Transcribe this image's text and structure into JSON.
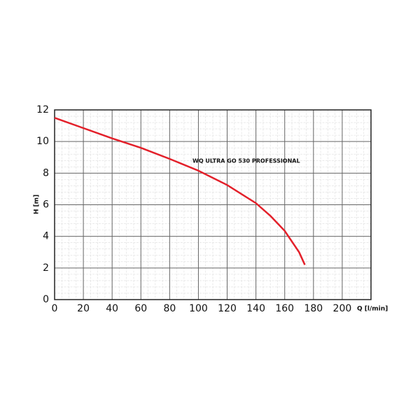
{
  "chart_data": {
    "type": "line",
    "annotation": "WQ ULTRA GO 530 PROFESSIONAL",
    "x_label": "Q [l/min]",
    "y_label": "H [m]",
    "series": [
      {
        "name": "WQ ULTRA GO 530 PROFESSIONAL",
        "color": "#e3202a",
        "x": [
          0,
          20,
          40,
          60,
          80,
          100,
          120,
          140,
          150,
          160,
          170,
          174
        ],
        "values": [
          11.5,
          10.85,
          10.2,
          9.6,
          8.9,
          8.15,
          7.25,
          6.1,
          5.3,
          4.35,
          3.0,
          2.2
        ]
      }
    ],
    "xlim": [
      0,
      220
    ],
    "ylim": [
      0,
      12
    ],
    "xticks": [
      0,
      20,
      40,
      60,
      80,
      100,
      120,
      140,
      160,
      180,
      200
    ],
    "yticks": [
      0,
      2,
      4,
      6,
      8,
      10,
      12
    ],
    "grid": true
  }
}
